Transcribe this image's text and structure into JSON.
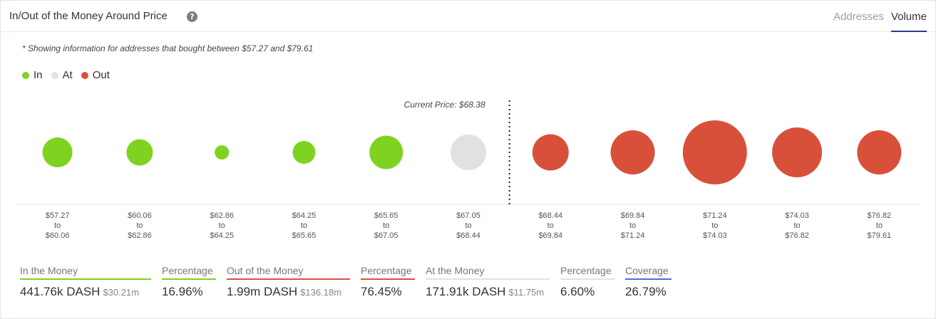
{
  "header": {
    "title": "In/Out of the Money Around Price",
    "tabs": [
      {
        "label": "Addresses",
        "active": false
      },
      {
        "label": "Volume",
        "active": true
      }
    ]
  },
  "note": "* Showing information for addresses that bought between $57.27 and $79.61",
  "legend": [
    {
      "label": "In",
      "color": "#7ed321"
    },
    {
      "label": "At",
      "color": "#e1e1e1"
    },
    {
      "label": "Out",
      "color": "#d9503a"
    }
  ],
  "chart_data": {
    "type": "scatter",
    "current_price_label": "Current Price: $68.38",
    "current_price_after_index": 5,
    "colors": {
      "In": "#7ed321",
      "At": "#e1e1e1",
      "Out": "#d9503a"
    },
    "buckets": [
      {
        "from": "$57.27",
        "to": "$60.06",
        "status": "In",
        "size": 21
      },
      {
        "from": "$60.06",
        "to": "$62.86",
        "status": "In",
        "size": 18.5
      },
      {
        "from": "$62.86",
        "to": "$64.25",
        "status": "In",
        "size": 10
      },
      {
        "from": "$64.25",
        "to": "$65.65",
        "status": "In",
        "size": 16
      },
      {
        "from": "$65.65",
        "to": "$67.05",
        "status": "In",
        "size": 23.5
      },
      {
        "from": "$67.05",
        "to": "$68.44",
        "status": "At",
        "size": 25
      },
      {
        "from": "$68.44",
        "to": "$69.84",
        "status": "Out",
        "size": 25.5
      },
      {
        "from": "$69.84",
        "to": "$71.24",
        "status": "Out",
        "size": 31
      },
      {
        "from": "$71.24",
        "to": "$74.03",
        "status": "Out",
        "size": 45
      },
      {
        "from": "$74.03",
        "to": "$76.82",
        "status": "Out",
        "size": 35
      },
      {
        "from": "$76.82",
        "to": "$79.61",
        "status": "Out",
        "size": 31
      }
    ]
  },
  "stats": [
    {
      "label": "In the Money",
      "value": "441.76k DASH",
      "sub": "$30.21m",
      "color": "#7ed321"
    },
    {
      "label": "Percentage",
      "value": "16.96%",
      "sub": "",
      "color": "#7ed321"
    },
    {
      "label": "Out of the Money",
      "value": "1.99m DASH",
      "sub": "$136.18m",
      "color": "#d9503a"
    },
    {
      "label": "Percentage",
      "value": "76.45%",
      "sub": "",
      "color": "#d9503a"
    },
    {
      "label": "At the Money",
      "value": "171.91k DASH",
      "sub": "$11.75m",
      "color": "#e1e1e1"
    },
    {
      "label": "Percentage",
      "value": "6.60%",
      "sub": "",
      "color": "#e1e1e1"
    },
    {
      "label": "Coverage",
      "value": "26.79%",
      "sub": "",
      "color": "#4a6fd8"
    }
  ]
}
